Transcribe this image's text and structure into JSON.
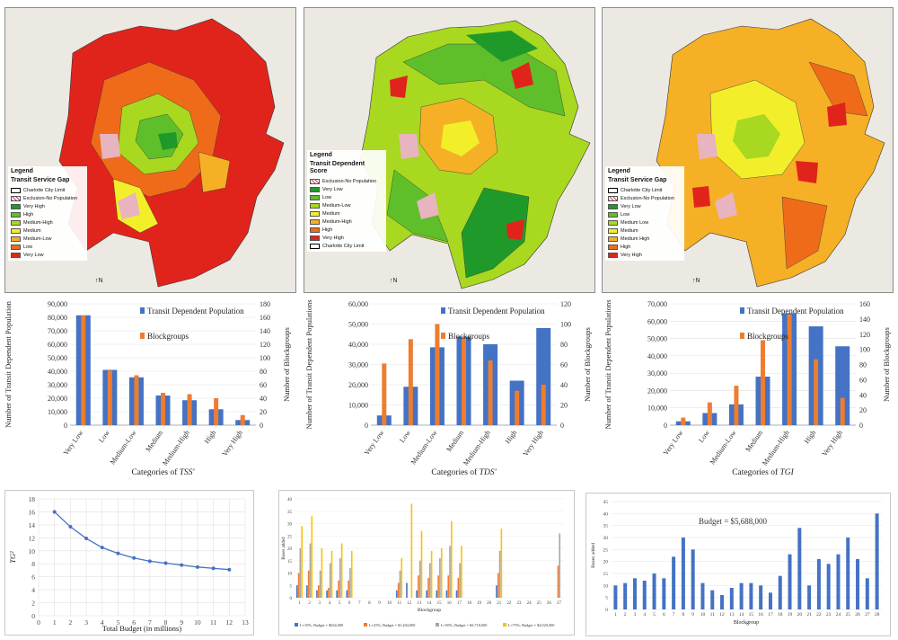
{
  "maps": [
    {
      "legend_title": "Legend",
      "legend_subtitle": "Transit Service Gap",
      "items": [
        {
          "label": "Charlotte City Limit",
          "color": "#ffffff",
          "kind": "outline"
        },
        {
          "label": "Exclusion-No Population",
          "color": "#e8b4c0",
          "kind": "hatch"
        },
        {
          "label": "Very High",
          "color": "#1f9a2a"
        },
        {
          "label": "High",
          "color": "#5fbf2a"
        },
        {
          "label": "Medium-High",
          "color": "#a8d820"
        },
        {
          "label": "Medium",
          "color": "#f2ef2a"
        },
        {
          "label": "Medium-Low",
          "color": "#f5b026"
        },
        {
          "label": "Low",
          "color": "#ef6b1a"
        },
        {
          "label": "Very Low",
          "color": "#e1241b"
        }
      ]
    },
    {
      "legend_title": "Legend",
      "legend_subtitle": "Transit Dependent Score",
      "items": [
        {
          "label": "Exclusion-No Population",
          "color": "#e8b4c0",
          "kind": "hatch"
        },
        {
          "label": "Very Low",
          "color": "#1f9a2a"
        },
        {
          "label": "Low",
          "color": "#5fbf2a"
        },
        {
          "label": "Medium-Low",
          "color": "#a8d820"
        },
        {
          "label": "Medium",
          "color": "#f2ef2a"
        },
        {
          "label": "Medium-High",
          "color": "#f5b026"
        },
        {
          "label": "High",
          "color": "#ef6b1a"
        },
        {
          "label": "Very High",
          "color": "#e1241b"
        },
        {
          "label": "Charlotte City Limit",
          "color": "#ffffff",
          "kind": "outline"
        }
      ]
    },
    {
      "legend_title": "Legend",
      "legend_subtitle": "Transit Service Gap",
      "items": [
        {
          "label": "Charlotte City Limit",
          "color": "#ffffff",
          "kind": "outline"
        },
        {
          "label": "Exclusion-No Population",
          "color": "#e8b4c0",
          "kind": "hatch"
        },
        {
          "label": "Very Low",
          "color": "#1f9a2a"
        },
        {
          "label": "Low",
          "color": "#5fbf2a"
        },
        {
          "label": "Medium Low",
          "color": "#a8d820"
        },
        {
          "label": "Medium",
          "color": "#f2ef2a"
        },
        {
          "label": "Medium High",
          "color": "#f5b026"
        },
        {
          "label": "High",
          "color": "#ef6b1a"
        },
        {
          "label": "Very High",
          "color": "#e1241b"
        }
      ]
    }
  ],
  "north_label": "N",
  "chart_data": [
    {
      "type": "bar",
      "categories": [
        "Very Low",
        "Low",
        "Medium-Low",
        "Medium",
        "Medium-High",
        "High",
        "Very High"
      ],
      "xlabel_prefix": "Categories of ",
      "xlabel_var": "TSS'",
      "ylabel_left": "Number of Transit Dependent Population",
      "ylabel_right": "Number of Blockgroups",
      "ylim_left": [
        0,
        90000
      ],
      "left_step": 10000,
      "ylim_right": [
        0,
        180
      ],
      "right_step": 20,
      "series": [
        {
          "name": "Transit Dependent Population",
          "color": "#4472c4",
          "axis": "left",
          "values": [
            81500,
            41000,
            35500,
            22000,
            18500,
            11800,
            3800
          ]
        },
        {
          "name": "Blockgroups",
          "color": "#ed7d31",
          "axis": "right",
          "values": [
            163,
            81,
            74,
            48,
            46,
            40,
            15
          ]
        }
      ],
      "legend": [
        "Transit Dependent Population",
        "Blockgroups"
      ]
    },
    {
      "type": "bar",
      "categories": [
        "Very Low",
        "Low",
        "Medium-Low",
        "Medium",
        "Medium-High",
        "High",
        "Very High"
      ],
      "xlabel_prefix": "Categories of ",
      "xlabel_var": "TDS'",
      "ylabel_left": "Number of Transit Dependent Populations",
      "ylabel_right": "Number of Blockgroups",
      "ylim_left": [
        0,
        60000
      ],
      "left_step": 10000,
      "ylim_right": [
        0,
        120
      ],
      "right_step": 20,
      "series": [
        {
          "name": "Transit Dependent Population",
          "color": "#4472c4",
          "axis": "left",
          "values": [
            4800,
            19000,
            38500,
            43800,
            40000,
            22000,
            48000
          ]
        },
        {
          "name": "Blockgroups",
          "color": "#ed7d31",
          "axis": "right",
          "values": [
            61,
            85,
            100,
            87,
            64,
            34,
            40
          ]
        }
      ],
      "legend": [
        "Transit Dependent Population",
        "Blockgroups"
      ]
    },
    {
      "type": "bar",
      "categories": [
        "Very Low",
        "Low",
        "Medium-Low",
        "Medium",
        "Medium-High",
        "High",
        "Very High"
      ],
      "xlabel_prefix": "Categories of ",
      "xlabel_var": "TGI",
      "ylabel_left": "Number of Transit Dependent Populations",
      "ylabel_right": "Number of Blockgroups",
      "ylim_left": [
        0,
        70000
      ],
      "left_step": 10000,
      "ylim_right": [
        0,
        160
      ],
      "right_step": 20,
      "series": [
        {
          "name": "Transit Dependent Population",
          "color": "#4472c4",
          "axis": "left",
          "values": [
            2200,
            7000,
            12000,
            28000,
            64500,
            57000,
            45500
          ]
        },
        {
          "name": "Blockgroups",
          "color": "#ed7d31",
          "axis": "right",
          "values": [
            10,
            30,
            52,
            112,
            146,
            87,
            36
          ]
        }
      ],
      "legend": [
        "Transit Dependent Population",
        "Blockgroups"
      ]
    },
    {
      "type": "line",
      "x": [
        1,
        2,
        3,
        4,
        5,
        6,
        7,
        8,
        9,
        10,
        11,
        12
      ],
      "y": [
        16.0,
        13.7,
        11.9,
        10.5,
        9.6,
        8.9,
        8.4,
        8.1,
        7.8,
        7.5,
        7.3,
        7.1
      ],
      "xlabel": "Total Budget (in millions)",
      "ylabel": "TG²",
      "xlim": [
        0,
        13
      ],
      "ylim": [
        0,
        18
      ],
      "x_ticks": [
        "0",
        "1",
        "2",
        "3",
        "4",
        "5",
        "6",
        "7",
        "8",
        "9",
        "10",
        "11",
        "12",
        "13"
      ],
      "y_ticks": [
        "0",
        "2",
        "4",
        "6",
        "8",
        "10",
        "12",
        "14",
        "16",
        "18"
      ],
      "color": "#4472c4",
      "grid": true
    },
    {
      "type": "bar",
      "categories": [
        "1",
        "2",
        "3",
        "4",
        "5",
        "6",
        "7",
        "8",
        "9",
        "10",
        "11",
        "12",
        "13",
        "14",
        "15",
        "16",
        "17",
        "18",
        "19",
        "20",
        "21",
        "22",
        "23",
        "24",
        "25",
        "26",
        "27"
      ],
      "xlabel": "Blockgroup",
      "ylabel": "Buses added",
      "ylim": [
        0,
        40
      ],
      "y_ticks": [
        "0",
        "5",
        "10",
        "15",
        "20",
        "25",
        "30",
        "35",
        "40"
      ],
      "series": [
        {
          "name": "L=10%, Budget = $634,000",
          "color": "#4472c4",
          "values": [
            5,
            5,
            3,
            3,
            3,
            3,
            0,
            0,
            0,
            0,
            3,
            6,
            3,
            3,
            3,
            3,
            3,
            0,
            0,
            0,
            5,
            0,
            0,
            0,
            0,
            0,
            0
          ]
        },
        {
          "name": "L=25%, Budget = $1,404,000",
          "color": "#ed7d31",
          "values": [
            10,
            11,
            5,
            4,
            7,
            7,
            0,
            0,
            0,
            0,
            6,
            0,
            9,
            8,
            9,
            9,
            8,
            0,
            0,
            0,
            10,
            0,
            0,
            0,
            0,
            0,
            13
          ]
        },
        {
          "name": "L=50%, Budget = $2,718,000",
          "color": "#a5a5a5",
          "values": [
            20,
            22,
            11,
            14,
            16,
            12,
            0,
            0,
            0,
            0,
            11,
            0,
            15,
            14,
            16,
            21,
            14,
            0,
            0,
            0,
            19,
            0,
            0,
            0,
            0,
            0,
            26
          ]
        },
        {
          "name": "L=75%, Budget = $4,020,000",
          "color": "#ffc000",
          "values": [
            29,
            33,
            20,
            19,
            22,
            19,
            0,
            0,
            0,
            0,
            16,
            38,
            27,
            19,
            20,
            31,
            21,
            0,
            0,
            0,
            28,
            0,
            0,
            0,
            0,
            0,
            0
          ]
        }
      ]
    },
    {
      "type": "bar",
      "categories": [
        "1",
        "2",
        "3",
        "4",
        "5",
        "6",
        "7",
        "8",
        "9",
        "10",
        "11",
        "12",
        "13",
        "14",
        "15",
        "16",
        "17",
        "18",
        "19",
        "20",
        "21",
        "22",
        "23",
        "24",
        "25",
        "26",
        "27",
        "28"
      ],
      "xlabel": "Blockgroup",
      "ylabel": "Buses added",
      "ylim": [
        0,
        45
      ],
      "y_ticks": [
        "0",
        "5",
        "10",
        "15",
        "20",
        "25",
        "30",
        "35",
        "40",
        "45"
      ],
      "annotation": "Budget = $5,688,000",
      "series": [
        {
          "name": "Buses added",
          "color": "#4472c4",
          "values": [
            10,
            11,
            13,
            12,
            15,
            13,
            22,
            30,
            25,
            11,
            8,
            6,
            9,
            11,
            11,
            10,
            7,
            14,
            23,
            34,
            10,
            21,
            19,
            23,
            30,
            21,
            13,
            40
          ]
        }
      ]
    }
  ]
}
